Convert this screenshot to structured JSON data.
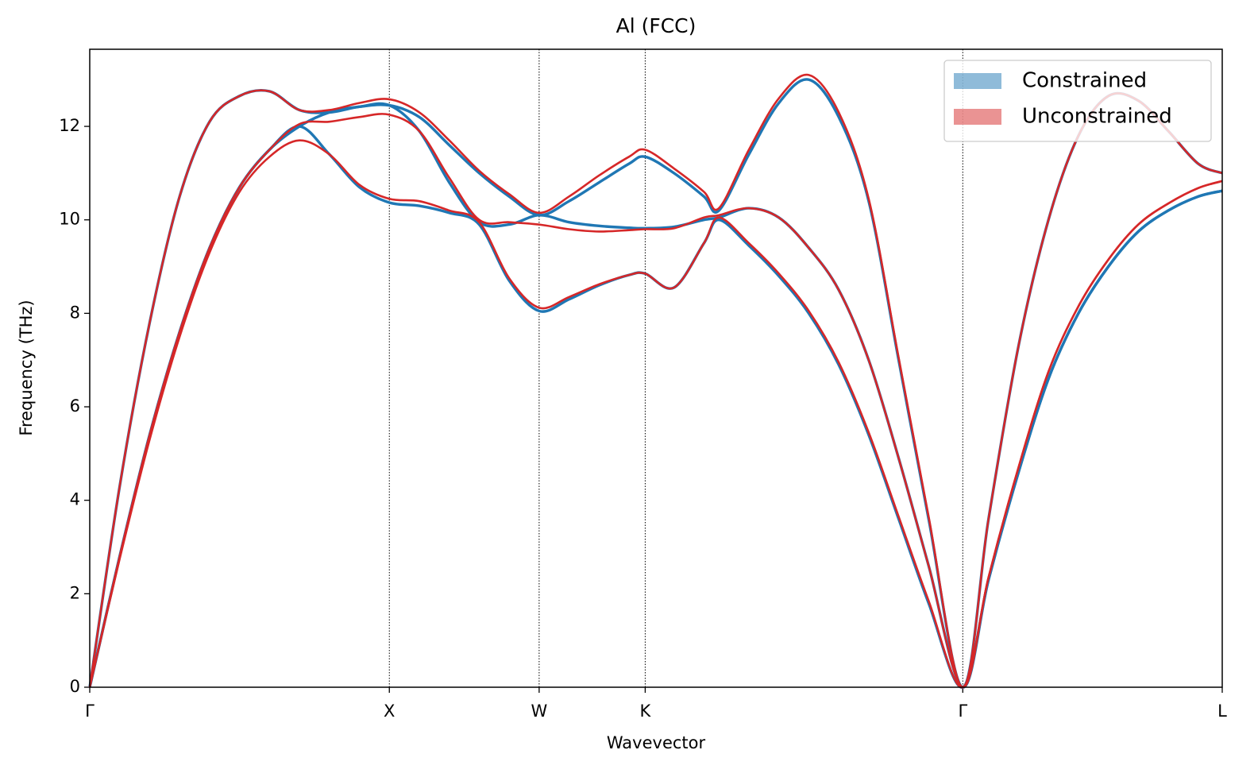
{
  "chart_data": {
    "type": "line",
    "title": "Al (FCC)",
    "xlabel": "Wavevector",
    "ylabel": "Frequency (THz)",
    "x": [
      0,
      0.1,
      0.2,
      0.3,
      0.4,
      0.5,
      0.6,
      0.7,
      0.8,
      0.9,
      1.0,
      1.1,
      1.2,
      1.3,
      1.4,
      1.5,
      1.6,
      1.7,
      1.8,
      1.854,
      1.95,
      2.05,
      2.1,
      2.2,
      2.3,
      2.4,
      2.5,
      2.6,
      2.7,
      2.8,
      2.914,
      3.0,
      3.1,
      3.2,
      3.3,
      3.4,
      3.5,
      3.6,
      3.7,
      3.78
    ],
    "series": [
      {
        "name": "Constrained",
        "color": "#1f77b4",
        "values": [
          [
            0,
            2.8,
            5.4,
            7.6,
            9.4,
            10.7,
            11.5,
            12.0,
            11.4,
            10.7,
            10.37,
            10.3,
            10.15,
            9.9,
            8.7,
            8.05,
            8.3,
            8.6,
            8.82,
            8.85,
            8.55,
            9.5,
            10.0,
            9.45,
            8.8,
            8.0,
            6.9,
            5.4,
            3.6,
            1.8,
            0,
            2.3,
            4.6,
            6.6,
            8.0,
            9.0,
            9.75,
            10.2,
            10.5,
            10.62
          ],
          [
            0,
            2.8,
            5.4,
            7.6,
            9.4,
            10.7,
            11.5,
            12.0,
            12.3,
            12.42,
            12.45,
            11.9,
            10.8,
            9.95,
            9.9,
            10.1,
            9.95,
            9.87,
            9.83,
            9.82,
            9.85,
            10.0,
            10.05,
            10.25,
            10.05,
            9.4,
            8.5,
            7.0,
            4.9,
            2.6,
            0,
            2.3,
            4.6,
            6.6,
            8.0,
            9.0,
            9.75,
            10.2,
            10.5,
            10.62
          ],
          [
            0,
            4.3,
            7.8,
            10.5,
            12.1,
            12.65,
            12.75,
            12.35,
            12.3,
            12.42,
            12.45,
            12.2,
            11.6,
            11.0,
            10.5,
            10.1,
            10.4,
            10.8,
            11.2,
            11.35,
            11.0,
            10.5,
            10.2,
            11.4,
            12.5,
            13.0,
            12.2,
            10.4,
            7.0,
            3.6,
            0,
            3.6,
            7.3,
            10.0,
            11.8,
            12.65,
            12.55,
            11.9,
            11.2,
            11.0
          ]
        ]
      },
      {
        "name": "Unconstrained",
        "color": "#d62728",
        "values": [
          [
            0,
            2.75,
            5.3,
            7.5,
            9.3,
            10.6,
            11.35,
            11.7,
            11.4,
            10.75,
            10.45,
            10.4,
            10.2,
            9.95,
            8.75,
            8.12,
            8.35,
            8.62,
            8.82,
            8.85,
            8.55,
            9.5,
            10.05,
            9.5,
            8.85,
            8.05,
            6.95,
            5.45,
            3.65,
            1.85,
            0,
            2.35,
            4.7,
            6.75,
            8.15,
            9.15,
            9.9,
            10.35,
            10.68,
            10.83
          ],
          [
            0,
            2.8,
            5.4,
            7.6,
            9.4,
            10.7,
            11.5,
            12.05,
            12.1,
            12.2,
            12.25,
            11.9,
            10.9,
            10.0,
            9.95,
            9.9,
            9.8,
            9.75,
            9.78,
            9.8,
            9.82,
            10.05,
            10.1,
            10.25,
            10.05,
            9.4,
            8.5,
            7.0,
            4.9,
            2.6,
            0,
            2.35,
            4.7,
            6.75,
            8.15,
            9.15,
            9.9,
            10.35,
            10.68,
            10.83
          ],
          [
            0,
            4.3,
            7.8,
            10.5,
            12.1,
            12.65,
            12.75,
            12.35,
            12.35,
            12.5,
            12.58,
            12.3,
            11.7,
            11.05,
            10.55,
            10.15,
            10.5,
            10.95,
            11.35,
            11.5,
            11.1,
            10.6,
            10.25,
            11.5,
            12.6,
            13.1,
            12.3,
            10.45,
            7.05,
            3.65,
            0,
            3.6,
            7.3,
            10.0,
            11.8,
            12.65,
            12.55,
            11.9,
            11.2,
            11.0
          ]
        ]
      }
    ],
    "xlim": [
      0,
      3.78
    ],
    "ylim": [
      0,
      13.65
    ],
    "xticks": [
      {
        "value": 0,
        "label": "Γ"
      },
      {
        "value": 1.0,
        "label": "X"
      },
      {
        "value": 1.5,
        "label": "W"
      },
      {
        "value": 1.854,
        "label": "K"
      },
      {
        "value": 2.914,
        "label": "Γ"
      },
      {
        "value": 3.78,
        "label": "L"
      }
    ],
    "yticks": [
      0,
      2,
      4,
      6,
      8,
      10,
      12
    ],
    "xgrid": true,
    "legend": "upper right"
  }
}
